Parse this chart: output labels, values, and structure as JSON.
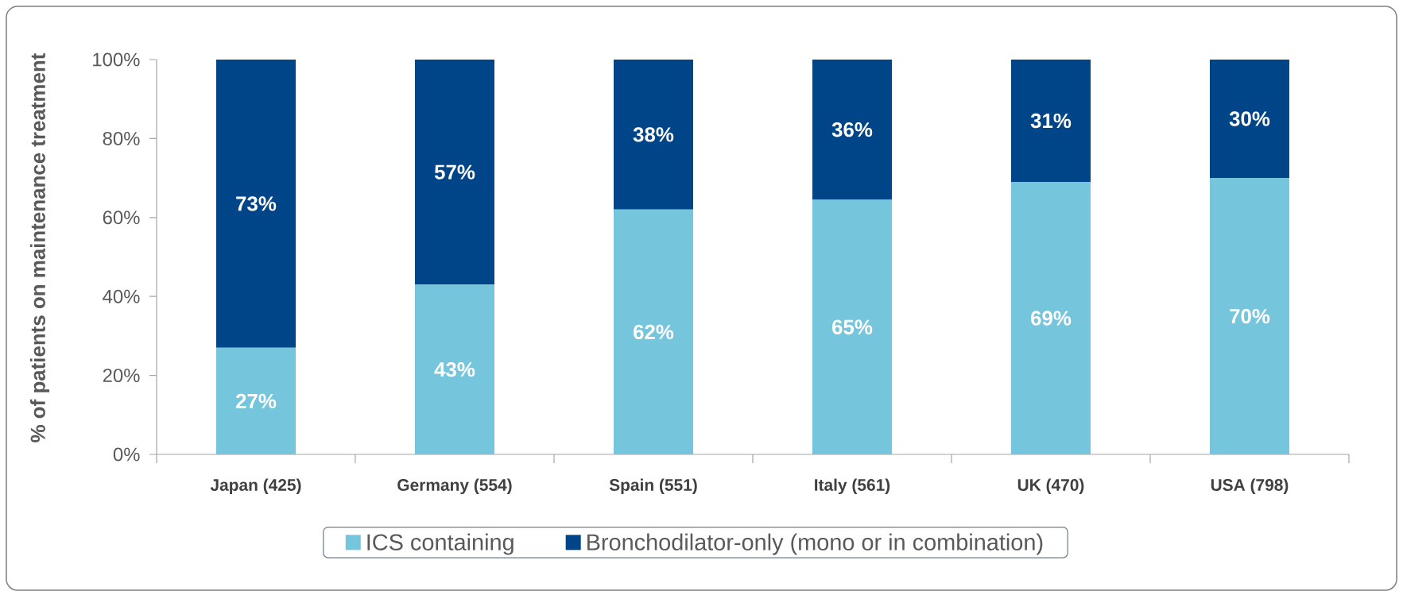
{
  "chart_data": {
    "type": "bar",
    "stacked": true,
    "ylabel": "% of patients on maintenance treatment",
    "categories": [
      "Japan (425)",
      "Germany (554)",
      "Spain (551)",
      "Italy (561)",
      "UK (470)",
      "USA (798)"
    ],
    "series": [
      {
        "name": "ICS containing",
        "color": "#75c6dd",
        "values": [
          27,
          43,
          62,
          64.5,
          69,
          70
        ],
        "value_labels": [
          "27%",
          "43%",
          "62%",
          "65%",
          "69%",
          "70%"
        ]
      },
      {
        "name": "Bronchodilator-only (mono or in combination)",
        "color": "#004587",
        "values": [
          73,
          57,
          38,
          35.5,
          31,
          30
        ],
        "value_labels": [
          "73%",
          "57%",
          "38%",
          "36%",
          "31%",
          "30%"
        ]
      }
    ],
    "ylim": [
      0,
      100
    ],
    "yticks": [
      {
        "value": 0,
        "label": "0%"
      },
      {
        "value": 20,
        "label": "20%"
      },
      {
        "value": 40,
        "label": "40%"
      },
      {
        "value": 60,
        "label": "60%"
      },
      {
        "value": 80,
        "label": "80%"
      },
      {
        "value": 100,
        "label": "100%"
      }
    ],
    "legend": "bottom"
  }
}
